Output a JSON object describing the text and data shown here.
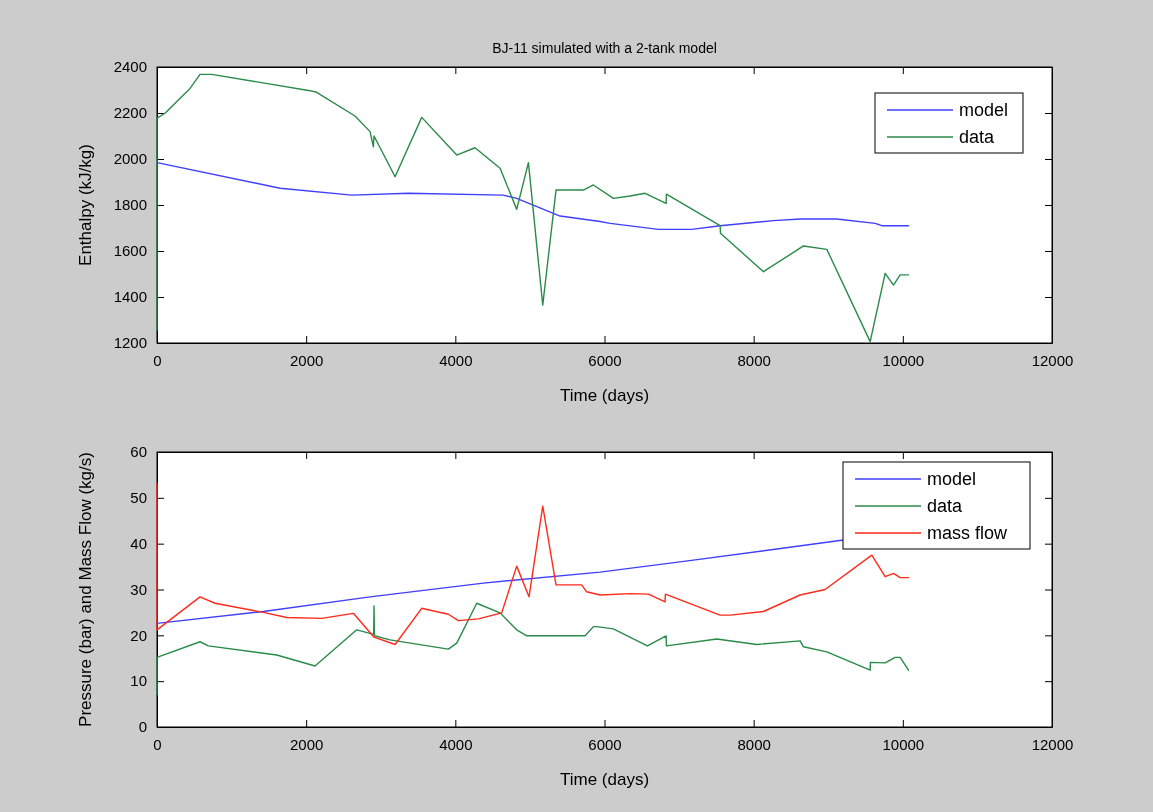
{
  "chart_data": [
    {
      "type": "line",
      "title": "BJ-11 simulated with a 2-tank model",
      "xlabel": "Time (days)",
      "ylabel": "Enthalpy (kJ/kg)",
      "xlim": [
        0,
        12000
      ],
      "xticks": [
        0,
        2000,
        4000,
        6000,
        8000,
        10000,
        12000
      ],
      "ylim": [
        1200,
        2400
      ],
      "yticks": [
        1200,
        1400,
        1600,
        1800,
        2000,
        2200,
        2400
      ],
      "legend": "top right",
      "line_style": "solid",
      "series": [
        {
          "name": "model",
          "color": "#3f3fff",
          "x": [
            0,
            1650,
            2611,
            3370,
            4640,
            4823,
            5315,
            5404,
            5941,
            6075,
            6723,
            7170,
            7550,
            8265,
            8623,
            9114,
            9629,
            9718,
            10076
          ],
          "values": [
            1984,
            1873,
            1843,
            1851,
            1843,
            1829,
            1764,
            1752,
            1728,
            1720,
            1694,
            1694,
            1710,
            1732,
            1739,
            1739,
            1720,
            1710,
            1710
          ]
        },
        {
          "name": "data",
          "color": "#2a8a4a",
          "x": [
            0,
            0,
            107,
            443,
            577,
            733,
            2052,
            2141,
            2655,
            2857,
            2901,
            2910,
            3192,
            3549,
            4019,
            4264,
            4600,
            4823,
            4980,
            5172,
            5350,
            5717,
            5851,
            6119,
            6343,
            6544,
            6826,
            6830,
            7550,
            7555,
            8131,
            8668,
            8981,
            9562,
            9763,
            9875,
            9964,
            10076
          ],
          "values": [
            1256,
            2178,
            2199,
            2307,
            2368,
            2368,
            2297,
            2290,
            2187,
            2119,
            2053,
            2100,
            1923,
            2181,
            2017,
            2049,
            1960,
            1781,
            1984,
            1365,
            1865,
            1865,
            1887,
            1829,
            1839,
            1851,
            1807,
            1847,
            1710,
            1677,
            1510,
            1622,
            1607,
            1206,
            1503,
            1452,
            1496,
            1496
          ]
        }
      ]
    },
    {
      "type": "line",
      "xlabel": "Time (days)",
      "ylabel": "Pressure (bar) and Mass Flow (kg/s)",
      "xlim": [
        0,
        12000
      ],
      "xticks": [
        0,
        2000,
        4000,
        6000,
        8000,
        10000,
        12000
      ],
      "ylim": [
        0,
        60
      ],
      "yticks": [
        0,
        10,
        20,
        30,
        40,
        50,
        60
      ],
      "legend": "top right",
      "line_style": "solid",
      "series": [
        {
          "name": "model",
          "color": "#3f3fff",
          "x": [
            0,
            1426,
            2857,
            4376,
            5941,
            7192,
            9204
          ],
          "values": [
            22.6,
            25.2,
            28.4,
            31.4,
            33.8,
            36.4,
            40.8
          ]
        },
        {
          "name": "data",
          "color": "#2a8a4a",
          "x": [
            0,
            0,
            577,
            688,
            1605,
            2119,
            2678,
            2905,
            2910,
            2915,
            3125,
            3906,
            4019,
            4287,
            4600,
            4823,
            4958,
            5740,
            5851,
            5896,
            6119,
            6575,
            6826,
            6830,
            7506,
            8042,
            8623,
            8667,
            8981,
            9562,
            9565,
            9763,
            9897,
            9964,
            10076
          ],
          "values": [
            7.0,
            15.2,
            18.6,
            17.7,
            15.7,
            13.3,
            21.2,
            20.2,
            26.4,
            19.9,
            19.0,
            17.0,
            18.3,
            27.0,
            24.9,
            21.2,
            19.9,
            19.9,
            21.9,
            21.9,
            21.4,
            17.7,
            19.9,
            17.7,
            19.2,
            18.0,
            18.8,
            17.5,
            16.4,
            12.4,
            14.1,
            14.0,
            15.2,
            15.2,
            12.4
          ]
        },
        {
          "name": "mass flow",
          "color": "#ff2a1a",
          "x": [
            0,
            0,
            577,
            778,
            1426,
            1739,
            2208,
            2633,
            2910,
            3192,
            3549,
            3906,
            4041,
            4309,
            4622,
            4823,
            4988,
            5172,
            5350,
            5694,
            5761,
            5941,
            6343,
            6589,
            6812,
            6816,
            7550,
            7684,
            8131,
            8623,
            8958,
            9584,
            9763,
            9875,
            9964,
            10076
          ],
          "values": [
            53.2,
            21.2,
            28.4,
            27.0,
            25.0,
            23.9,
            23.7,
            24.8,
            19.6,
            18.0,
            25.9,
            24.6,
            23.2,
            23.6,
            24.9,
            35.1,
            28.4,
            48.2,
            31.0,
            31.0,
            29.5,
            28.8,
            29.1,
            29.0,
            27.3,
            29.0,
            24.4,
            24.4,
            25.2,
            28.8,
            30.0,
            37.5,
            32.8,
            33.5,
            32.6,
            32.6
          ]
        }
      ]
    }
  ]
}
